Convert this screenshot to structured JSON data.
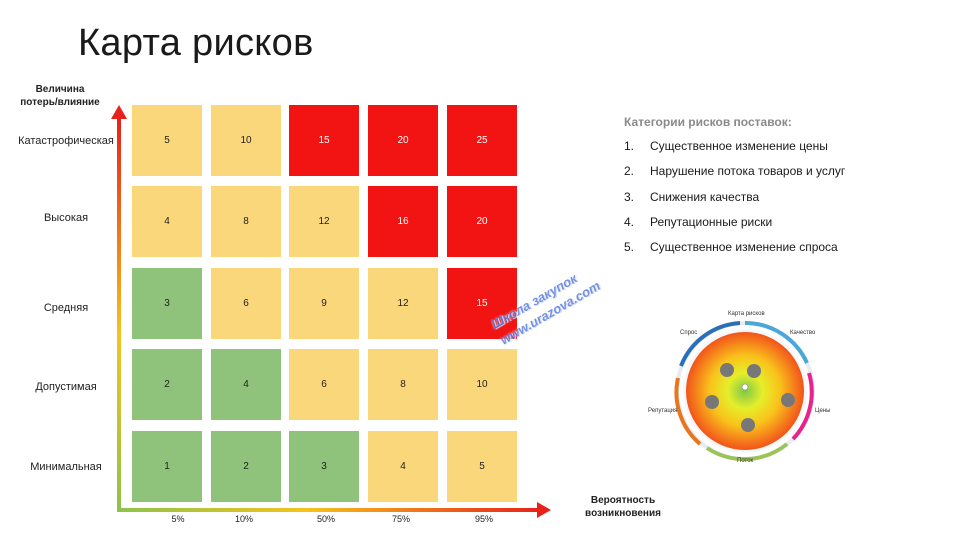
{
  "title": "Карта рисков",
  "y_axis_label": [
    "Величина",
    "потерь/влияние"
  ],
  "x_axis_label": [
    "Вероятность",
    "возникновения"
  ],
  "rows": [
    {
      "label": "Катастрофическая",
      "cells": [
        {
          "value": "5",
          "level": "yellow"
        },
        {
          "value": "10",
          "level": "yellow"
        },
        {
          "value": "15",
          "level": "red"
        },
        {
          "value": "20",
          "level": "red"
        },
        {
          "value": "25",
          "level": "red"
        }
      ]
    },
    {
      "label": "Высокая",
      "cells": [
        {
          "value": "4",
          "level": "yellow"
        },
        {
          "value": "8",
          "level": "yellow"
        },
        {
          "value": "12",
          "level": "yellow"
        },
        {
          "value": "16",
          "level": "red"
        },
        {
          "value": "20",
          "level": "red"
        }
      ]
    },
    {
      "label": "Средняя",
      "cells": [
        {
          "value": "3",
          "level": "green"
        },
        {
          "value": "6",
          "level": "yellow"
        },
        {
          "value": "9",
          "level": "yellow"
        },
        {
          "value": "12",
          "level": "yellow"
        },
        {
          "value": "15",
          "level": "red"
        }
      ]
    },
    {
      "label": "Допустимая",
      "cells": [
        {
          "value": "2",
          "level": "green"
        },
        {
          "value": "4",
          "level": "green"
        },
        {
          "value": "6",
          "level": "yellow"
        },
        {
          "value": "8",
          "level": "yellow"
        },
        {
          "value": "10",
          "level": "yellow"
        }
      ]
    },
    {
      "label": "Минимальная",
      "cells": [
        {
          "value": "1",
          "level": "green"
        },
        {
          "value": "2",
          "level": "green"
        },
        {
          "value": "3",
          "level": "green"
        },
        {
          "value": "4",
          "level": "yellow"
        },
        {
          "value": "5",
          "level": "yellow"
        }
      ]
    }
  ],
  "x_ticks": [
    "5%",
    "10%",
    "50%",
    "75%",
    "95%"
  ],
  "categories": {
    "title": "Категории рисков поставок:",
    "items": [
      {
        "num": "1.",
        "text": "Существенное изменение цены"
      },
      {
        "num": "2.",
        "text": "Нарушение потока товаров и услуг"
      },
      {
        "num": "3.",
        "text": "Снижения качества"
      },
      {
        "num": "4.",
        "text": "Репутационные риски"
      },
      {
        "num": "5.",
        "text": "Существенное изменение спроса"
      }
    ]
  },
  "watermark": [
    "Школа закупок",
    "www.urazova.com"
  ],
  "wheel": {
    "title": "Карта рисков",
    "labels": {
      "demand": "Спрос",
      "quality": "Качество",
      "reputation": "Репутация",
      "price": "Цены",
      "flow": "Поток"
    }
  },
  "colors": {
    "red": "#f21313",
    "yellow": "#fbd77c",
    "green": "#8fc27a"
  }
}
